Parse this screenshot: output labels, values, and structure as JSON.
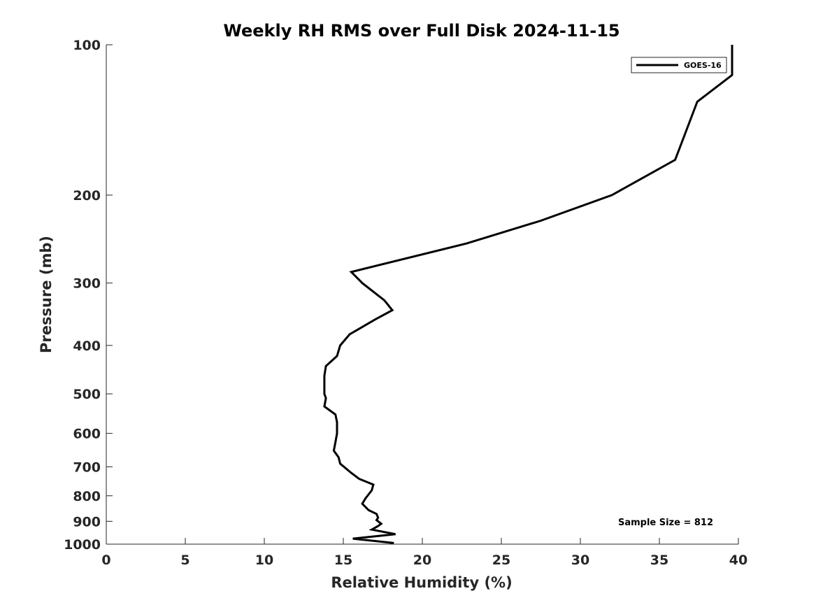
{
  "chart_data": {
    "type": "line",
    "title": "Weekly RH RMS over Full Disk 2024-11-15",
    "xlabel": "Relative Humidity (%)",
    "ylabel": "Pressure (mb)",
    "xlim": [
      0,
      40
    ],
    "ylim": [
      100,
      1000
    ],
    "y_scale": "log",
    "y_reversed": true,
    "x_ticks": [
      0,
      5,
      10,
      15,
      20,
      25,
      30,
      35,
      40
    ],
    "x_tick_labels": [
      "0",
      "5",
      "10",
      "15",
      "20",
      "25",
      "30",
      "35",
      "40"
    ],
    "y_ticks": [
      100,
      200,
      300,
      400,
      500,
      600,
      700,
      800,
      900,
      1000
    ],
    "y_tick_labels": [
      "100",
      "200",
      "300",
      "400",
      "500",
      "600",
      "700",
      "800",
      "900",
      "1000"
    ],
    "grid": false,
    "legend_position": "top-right",
    "series": [
      {
        "name": "GOES-16",
        "color": "#000000",
        "points": [
          [
            39.6,
            100
          ],
          [
            39.6,
            115
          ],
          [
            37.4,
            130
          ],
          [
            36.0,
            170
          ],
          [
            32.0,
            200
          ],
          [
            27.5,
            225
          ],
          [
            22.8,
            250
          ],
          [
            15.5,
            285
          ],
          [
            16.2,
            300
          ],
          [
            17.6,
            325
          ],
          [
            18.1,
            340
          ],
          [
            17.0,
            355
          ],
          [
            15.4,
            380
          ],
          [
            14.8,
            400
          ],
          [
            14.6,
            420
          ],
          [
            13.9,
            440
          ],
          [
            13.8,
            460
          ],
          [
            13.8,
            500
          ],
          [
            13.9,
            510
          ],
          [
            13.8,
            530
          ],
          [
            14.5,
            550
          ],
          [
            14.6,
            570
          ],
          [
            14.6,
            600
          ],
          [
            14.5,
            625
          ],
          [
            14.4,
            650
          ],
          [
            14.7,
            670
          ],
          [
            14.8,
            690
          ],
          [
            15.5,
            720
          ],
          [
            16.0,
            740
          ],
          [
            16.9,
            760
          ],
          [
            16.8,
            780
          ],
          [
            16.4,
            810
          ],
          [
            16.2,
            830
          ],
          [
            16.6,
            855
          ],
          [
            17.1,
            870
          ],
          [
            17.2,
            885
          ],
          [
            17.1,
            895
          ],
          [
            17.4,
            910
          ],
          [
            17.2,
            920
          ],
          [
            16.8,
            935
          ],
          [
            18.3,
            955
          ],
          [
            15.6,
            975
          ],
          [
            18.2,
            995
          ]
        ]
      }
    ],
    "annotations": [
      "Sample Size = 812"
    ]
  }
}
